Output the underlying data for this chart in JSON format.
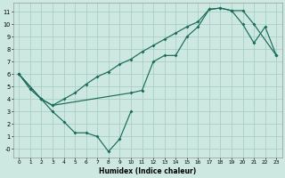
{
  "xlabel": "Humidex (Indice chaleur)",
  "bg_color": "#cce8e0",
  "grid_color": "#aacfc8",
  "line_color": "#1a6b5a",
  "xlim": [
    -0.5,
    23.5
  ],
  "ylim": [
    -0.7,
    11.7
  ],
  "xticks": [
    0,
    1,
    2,
    3,
    4,
    5,
    6,
    7,
    8,
    9,
    10,
    11,
    12,
    13,
    14,
    15,
    16,
    17,
    18,
    19,
    20,
    21,
    22,
    23
  ],
  "yticks": [
    0,
    1,
    2,
    3,
    4,
    5,
    6,
    7,
    8,
    9,
    10,
    11
  ],
  "ytick_labels": [
    "-0",
    "1",
    "2",
    "3",
    "4",
    "5",
    "6",
    "7",
    "8",
    "9",
    "10",
    "11"
  ],
  "line1_x": [
    0,
    1,
    2,
    3,
    4,
    5,
    6,
    7,
    8,
    9,
    10
  ],
  "line1_y": [
    6.0,
    4.8,
    4.0,
    3.0,
    2.2,
    1.3,
    1.3,
    1.0,
    -0.2,
    0.8,
    3.0
  ],
  "line2_x": [
    0,
    2,
    3,
    4,
    5,
    6,
    7,
    8,
    9,
    10,
    11,
    12,
    13,
    14,
    15,
    16,
    17,
    18,
    19,
    20,
    21,
    23
  ],
  "line2_y": [
    6.0,
    4.0,
    3.5,
    4.0,
    4.5,
    5.2,
    5.8,
    6.2,
    6.8,
    7.2,
    7.8,
    8.3,
    8.8,
    9.3,
    9.8,
    10.2,
    11.2,
    11.3,
    11.1,
    11.1,
    10.0,
    7.5
  ],
  "line3_x": [
    0,
    2,
    3,
    10,
    11,
    12,
    13,
    14,
    15,
    16,
    17,
    18,
    19,
    20,
    21,
    22,
    23
  ],
  "line3_y": [
    6.0,
    4.0,
    3.5,
    4.5,
    4.7,
    7.0,
    7.5,
    7.5,
    9.0,
    9.8,
    11.2,
    11.3,
    11.1,
    10.0,
    8.5,
    9.8,
    7.5
  ]
}
